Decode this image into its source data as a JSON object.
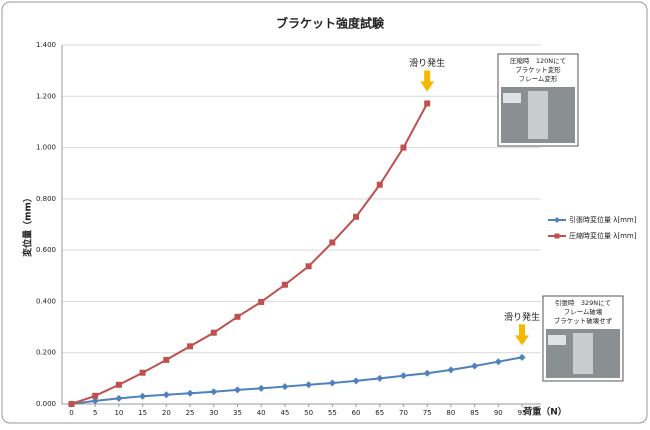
{
  "chart_data": {
    "type": "line",
    "title": "ブラケット強度試験",
    "y_label": "変位量（mm）",
    "x_label": "荷重（N）",
    "xlim": [
      -2,
      99
    ],
    "xticks": [
      0,
      5,
      10,
      15,
      20,
      25,
      30,
      35,
      40,
      45,
      50,
      55,
      60,
      65,
      70,
      75,
      80,
      85,
      90,
      95
    ],
    "ylim": [
      0,
      1.4
    ],
    "yticks": [
      {
        "value": 0,
        "label": "0.000"
      },
      {
        "value": 0.2,
        "label": "0.200"
      },
      {
        "value": 0.4,
        "label": "0.400"
      },
      {
        "value": 0.6,
        "label": "0.600"
      },
      {
        "value": 0.8,
        "label": "0.800"
      },
      {
        "value": 1.0,
        "label": "1.000"
      },
      {
        "value": 1.2,
        "label": "1.200"
      },
      {
        "value": 1.4,
        "label": "1.400"
      }
    ],
    "grid": true,
    "legend": "right",
    "series": [
      {
        "name": "引張時変位量 λ[mm]",
        "color": "#4f81bd",
        "marker": "diamond",
        "x": [
          0,
          5,
          10,
          15,
          20,
          25,
          30,
          35,
          40,
          45,
          50,
          55,
          60,
          65,
          70,
          75,
          80,
          85,
          90,
          95
        ],
        "values": [
          0,
          0.012,
          0.022,
          0.03,
          0.036,
          0.042,
          0.048,
          0.055,
          0.061,
          0.068,
          0.075,
          0.082,
          0.09,
          0.1,
          0.11,
          0.12,
          0.133,
          0.148,
          0.165,
          0.182
        ]
      },
      {
        "name": "圧縮時変位量 λ[mm]",
        "color": "#c0504d",
        "marker": "square",
        "x": [
          0,
          5,
          10,
          15,
          20,
          25,
          30,
          35,
          40,
          45,
          50,
          55,
          60,
          65,
          70,
          75
        ],
        "values": [
          0,
          0.032,
          0.075,
          0.122,
          0.172,
          0.225,
          0.278,
          0.34,
          0.398,
          0.465,
          0.537,
          0.63,
          0.73,
          0.855,
          1.0,
          1.172
        ]
      }
    ],
    "annotations": [
      "滑り発生",
      "滑り発生"
    ],
    "photo_captions": [
      [
        "圧縮時　120Nにて",
        "ブラケット変形",
        "フレーム変形"
      ],
      [
        "引張時　329Nにて",
        "フレーム破壊",
        "ブラケット破壊せず"
      ]
    ]
  }
}
